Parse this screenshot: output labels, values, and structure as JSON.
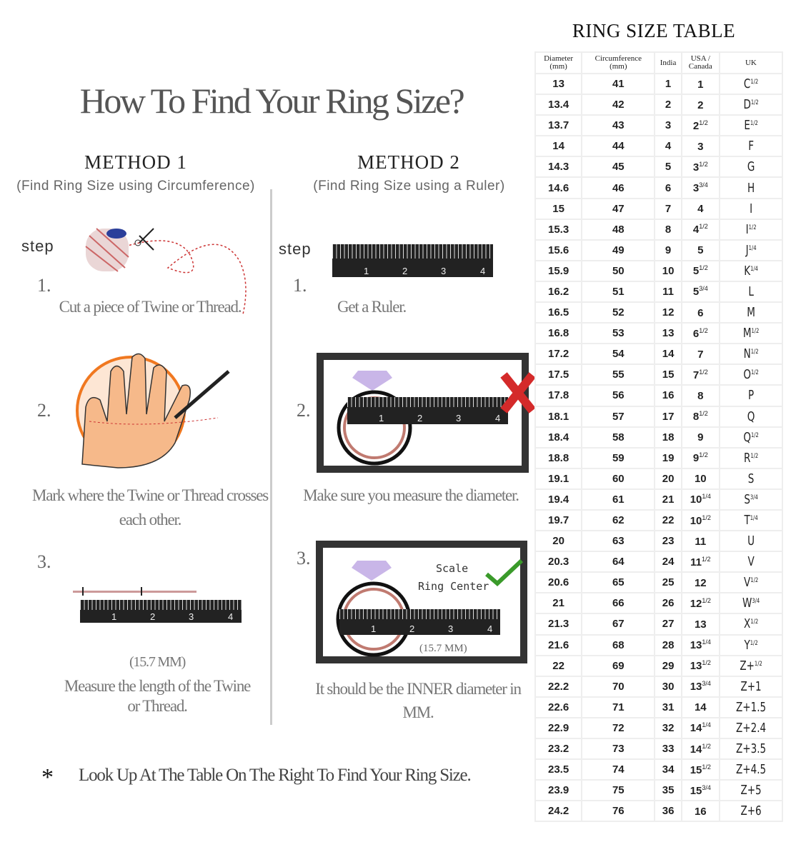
{
  "title": "How To Find Your Ring Size?",
  "method1": {
    "heading": "METHOD 1",
    "subtitle": "(Find Ring Size using Circumference)",
    "step_label": "step",
    "steps": [
      {
        "num": "1.",
        "caption": "Cut a piece of  Twine or Thread."
      },
      {
        "num": "2.",
        "caption": "Mark where the Twine or Thread crosses each other."
      },
      {
        "num": "3.",
        "measurement": "(15.7 MM)",
        "caption": "Measure the length of the Twine or Thread."
      }
    ]
  },
  "method2": {
    "heading": "METHOD 2",
    "subtitle": "(Find Ring Size using a Ruler)",
    "step_label": "step",
    "steps": [
      {
        "num": "1.",
        "caption": "Get a Ruler."
      },
      {
        "num": "2.",
        "caption": "Make sure you measure the diameter."
      },
      {
        "num": "3.",
        "scale_label": "Scale",
        "center_label": "Ring Center",
        "measurement": "(15.7 MM)",
        "caption": "It should be the INNER diameter in MM."
      }
    ]
  },
  "ruler_numbers": [
    "1",
    "2",
    "3",
    "4"
  ],
  "footnote": {
    "symbol": "*",
    "text": "Look Up  At The Table On The Right To Find Your Ring Size."
  },
  "colors": {
    "wrong": "#d42a2a",
    "correct": "#3a9a2a",
    "ring": "#c07a70",
    "diamond": "#c9b6e8",
    "hand_outline": "#f07820"
  },
  "table": {
    "title": "RING SIZE TABLE",
    "headers": [
      [
        "Diameter",
        "(mm)"
      ],
      [
        "Circumference",
        "(mm)"
      ],
      [
        "India",
        ""
      ],
      [
        "USA /",
        "Canada"
      ],
      [
        "UK",
        ""
      ]
    ],
    "rows": [
      [
        "13",
        "41",
        "1",
        "1",
        "",
        "C",
        "1/2"
      ],
      [
        "13.4",
        "42",
        "2",
        "2",
        "",
        "D",
        "1/2"
      ],
      [
        "13.7",
        "43",
        "3",
        "2",
        "1/2",
        "E",
        "1/2"
      ],
      [
        "14",
        "44",
        "4",
        "3",
        "",
        "F",
        ""
      ],
      [
        "14.3",
        "45",
        "5",
        "3",
        "1/2",
        "G",
        ""
      ],
      [
        "14.6",
        "46",
        "6",
        "3",
        "3/4",
        "H",
        ""
      ],
      [
        "15",
        "47",
        "7",
        "4",
        "",
        "I",
        ""
      ],
      [
        "15.3",
        "48",
        "8",
        "4",
        "1/2",
        "I",
        "1/2"
      ],
      [
        "15.6",
        "49",
        "9",
        "5",
        "",
        "J",
        "1/4"
      ],
      [
        "15.9",
        "50",
        "10",
        "5",
        "1/2",
        "K",
        "1/4"
      ],
      [
        "16.2",
        "51",
        "11",
        "5",
        "3/4",
        "L",
        ""
      ],
      [
        "16.5",
        "52",
        "12",
        "6",
        "",
        "M",
        ""
      ],
      [
        "16.8",
        "53",
        "13",
        "6",
        "1/2",
        "M",
        "1/2"
      ],
      [
        "17.2",
        "54",
        "14",
        "7",
        "",
        "N",
        "1/2"
      ],
      [
        "17.5",
        "55",
        "15",
        "7",
        "1/2",
        "O",
        "1/2"
      ],
      [
        "17.8",
        "56",
        "16",
        "8",
        "",
        "P",
        ""
      ],
      [
        "18.1",
        "57",
        "17",
        "8",
        "1/2",
        "Q",
        ""
      ],
      [
        "18.4",
        "58",
        "18",
        "9",
        "",
        "Q",
        "1/2"
      ],
      [
        "18.8",
        "59",
        "19",
        "9",
        "1/2",
        "R",
        "1/2"
      ],
      [
        "19.1",
        "60",
        "20",
        "10",
        "",
        "S",
        ""
      ],
      [
        "19.4",
        "61",
        "21",
        "10",
        "1/4",
        "S",
        "3/4"
      ],
      [
        "19.7",
        "62",
        "22",
        "10",
        "1/2",
        "T",
        "1/4"
      ],
      [
        "20",
        "63",
        "23",
        "11",
        "",
        "U",
        ""
      ],
      [
        "20.3",
        "64",
        "24",
        "11",
        "1/2",
        "V",
        ""
      ],
      [
        "20.6",
        "65",
        "25",
        "12",
        "",
        "V",
        "1/2"
      ],
      [
        "21",
        "66",
        "26",
        "12",
        "1/2",
        "W",
        "3/4"
      ],
      [
        "21.3",
        "67",
        "27",
        "13",
        "",
        "X",
        "1/2"
      ],
      [
        "21.6",
        "68",
        "28",
        "13",
        "1/4",
        "Y",
        "1/2"
      ],
      [
        "22",
        "69",
        "29",
        "13",
        "1/2",
        "Z+",
        "1/2"
      ],
      [
        "22.2",
        "70",
        "30",
        "13",
        "3/4",
        "Z+1",
        ""
      ],
      [
        "22.6",
        "71",
        "31",
        "14",
        "",
        "Z+1.5",
        ""
      ],
      [
        "22.9",
        "72",
        "32",
        "14",
        "1/4",
        "Z+2.4",
        ""
      ],
      [
        "23.2",
        "73",
        "33",
        "14",
        "1/2",
        "Z+3.5",
        ""
      ],
      [
        "23.5",
        "74",
        "34",
        "15",
        "1/2",
        "Z+4.5",
        ""
      ],
      [
        "23.9",
        "75",
        "35",
        "15",
        "3/4",
        "Z+5",
        ""
      ],
      [
        "24.2",
        "76",
        "36",
        "16",
        "",
        "Z+6",
        ""
      ]
    ]
  }
}
